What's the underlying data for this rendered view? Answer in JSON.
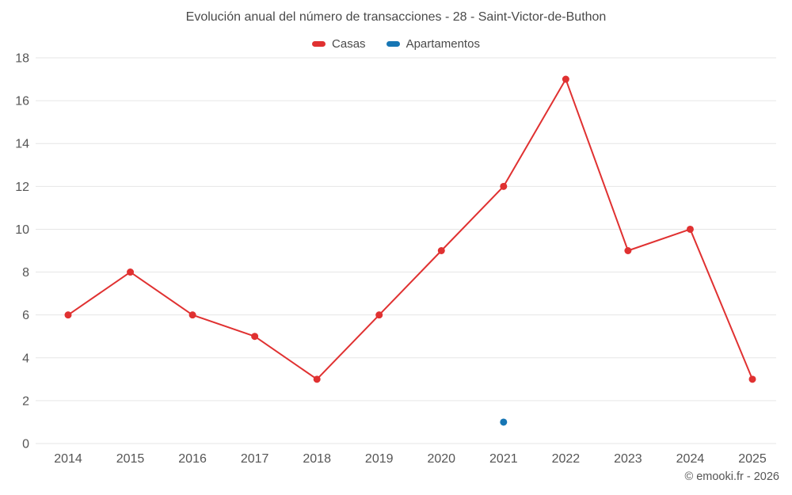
{
  "header": {
    "title": "Evolución anual del número de transacciones - 28 - Saint-Victor-de-Buthon"
  },
  "legend": {
    "items": [
      {
        "label": "Casas",
        "color": "#e03131"
      },
      {
        "label": "Apartamentos",
        "color": "#1776b4"
      }
    ]
  },
  "footer": {
    "credit": "© emooki.fr - 2026"
  },
  "chart_data": {
    "type": "line",
    "title": "Evolución anual del número de transacciones - 28 - Saint-Victor-de-Buthon",
    "x": [
      2014,
      2015,
      2016,
      2017,
      2018,
      2019,
      2020,
      2021,
      2022,
      2023,
      2024,
      2025
    ],
    "series": [
      {
        "name": "Casas",
        "color": "#e03131",
        "values": [
          6,
          8,
          6,
          5,
          3,
          6,
          9,
          12,
          17,
          9,
          10,
          3
        ]
      },
      {
        "name": "Apartamentos",
        "color": "#1776b4",
        "values": [
          null,
          null,
          null,
          null,
          null,
          null,
          null,
          1,
          null,
          null,
          null,
          null
        ]
      }
    ],
    "xlabel": "",
    "ylabel": "",
    "ylim": [
      0,
      18
    ],
    "ytick_step": 2,
    "grid": "horizontal",
    "grid_color": "#e6e6e6",
    "tick_color": "#555555",
    "legend_position": "top"
  }
}
